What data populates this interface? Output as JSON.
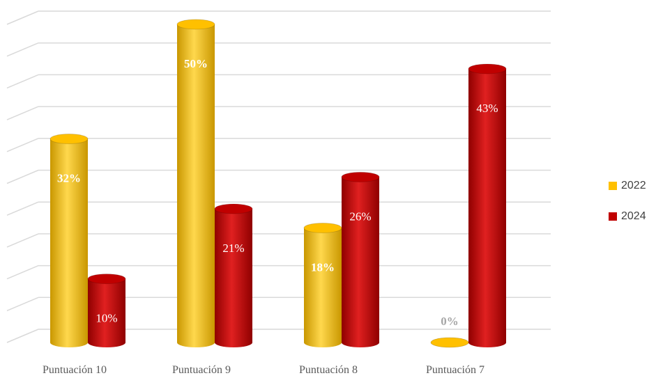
{
  "chart_data": {
    "type": "bar3d",
    "categories": [
      "Puntuación 10",
      "Puntuación 9",
      "Puntuación 8",
      "Puntuación 7"
    ],
    "series": [
      {
        "name": "2022",
        "color": "#ffc000",
        "values": [
          32,
          50,
          18,
          0
        ],
        "value_labels": [
          "32%",
          "50%",
          "18%",
          "0%"
        ]
      },
      {
        "name": "2024",
        "color": "#c00000",
        "values": [
          10,
          21,
          26,
          43
        ],
        "value_labels": [
          "10%",
          "21%",
          "26%",
          "43%"
        ]
      }
    ],
    "ylim": [
      0,
      50
    ],
    "yticks": [
      0,
      5,
      10,
      15,
      20,
      25,
      30,
      35,
      40,
      45,
      50
    ],
    "grid": true,
    "legend": "right"
  }
}
